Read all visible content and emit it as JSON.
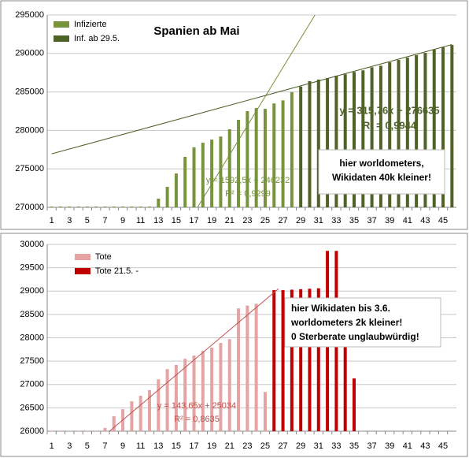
{
  "chart_data": [
    {
      "type": "bar",
      "title": "Spanien ab Mai",
      "categories": [
        1,
        null,
        3,
        null,
        5,
        null,
        7,
        null,
        9,
        null,
        11,
        null,
        13,
        null,
        15,
        null,
        17,
        null,
        19,
        null,
        21,
        null,
        23,
        null,
        25,
        null,
        27,
        null,
        29,
        null,
        31,
        null,
        33,
        null,
        35,
        null,
        37,
        null,
        39,
        null,
        41,
        null,
        43,
        null,
        45,
        null
      ],
      "series": [
        {
          "name": "Infizierte",
          "color": "#77933c",
          "values": [
            270100,
            270100,
            270100,
            270100,
            270100,
            270100,
            270100,
            270100,
            270100,
            270100,
            270100,
            270100,
            271130,
            272660,
            274400,
            276560,
            277790,
            278400,
            278800,
            279200,
            280140,
            281370,
            282500,
            282900,
            282800,
            283500,
            283900,
            284960,
            null,
            null,
            null,
            null,
            null,
            null,
            null,
            null,
            null,
            null,
            null,
            null,
            null,
            null,
            null,
            null,
            null,
            null
          ]
        },
        {
          "name": "Inf. ab 29.5.",
          "color": "#4f6228",
          "values": [
            null,
            null,
            null,
            null,
            null,
            null,
            null,
            null,
            null,
            null,
            null,
            null,
            null,
            null,
            null,
            null,
            null,
            null,
            null,
            null,
            null,
            null,
            null,
            null,
            null,
            null,
            null,
            null,
            285700,
            286400,
            286600,
            286800,
            287100,
            287300,
            287600,
            287800,
            288200,
            288400,
            288850,
            289150,
            289450,
            289770,
            290070,
            290500,
            290800,
            291100
          ]
        }
      ],
      "ylim": [
        270000,
        295000
      ],
      "yticks": [
        270000,
        275000,
        280000,
        285000,
        290000,
        295000
      ],
      "grid": true,
      "legend": "top-left",
      "trendlines": [
        {
          "color": "#77933c",
          "x": [
            17.4,
            30.6
          ],
          "values": [
            270000,
            295000
          ],
          "equation": "y = 1592,5x + 246232",
          "r_squared": "R² = 0,9299"
        },
        {
          "color": "#4f6228",
          "x": [
            1,
            46
          ],
          "values": [
            276950,
            291160
          ],
          "equation": "y = 315,76x + 276635",
          "r_squared": "R² = 0,9944"
        }
      ],
      "annotations": [
        "hier worldometers,",
        "Wikidaten 40k kleiner!"
      ]
    },
    {
      "type": "bar",
      "categories": [
        1,
        null,
        3,
        null,
        5,
        null,
        7,
        null,
        9,
        null,
        11,
        null,
        13,
        null,
        15,
        null,
        17,
        null,
        19,
        null,
        21,
        null,
        23,
        null,
        25,
        null,
        27,
        null,
        29,
        null,
        31,
        null,
        33,
        null,
        35,
        null,
        37,
        null,
        39,
        null,
        41,
        null,
        43,
        null,
        45,
        null
      ],
      "series": [
        {
          "name": "Tote",
          "color": "#e6a3a3",
          "values": [
            26010,
            26010,
            26010,
            26010,
            26010,
            26010,
            26070,
            26320,
            26470,
            26640,
            26760,
            26880,
            27110,
            27330,
            27420,
            27550,
            27620,
            27720,
            27790,
            27890,
            27970,
            28630,
            28690,
            28730,
            26840,
            null,
            null,
            null,
            null,
            null,
            null,
            null,
            null,
            null,
            null,
            null,
            null,
            null,
            null,
            null,
            null,
            null,
            null,
            null,
            null,
            null
          ]
        },
        {
          "name": "Tote 21.5. -",
          "color": "#c00000",
          "values": [
            null,
            null,
            null,
            null,
            null,
            null,
            null,
            null,
            null,
            null,
            null,
            null,
            null,
            null,
            null,
            null,
            null,
            null,
            null,
            null,
            null,
            null,
            null,
            null,
            null,
            29020,
            29020,
            29030,
            29040,
            29050,
            29060,
            29860,
            29860,
            28700,
            27130,
            null,
            null,
            null,
            null,
            null,
            null,
            null,
            null,
            null,
            null,
            null
          ]
        }
      ],
      "ylim": [
        26000,
        30000
      ],
      "yticks": [
        26000,
        26500,
        27000,
        27500,
        28000,
        28500,
        29000,
        29500,
        30000
      ],
      "grid": true,
      "legend": "top-left",
      "trendlines": [
        {
          "color": "#c0504d",
          "x": [
            7.5,
            26.5
          ],
          "values": [
            26000,
            29050
          ],
          "equation": "y = 143,65x + 25034",
          "r_squared": "R² = 0,8635"
        }
      ],
      "annotations": [
        "hier Wikidaten bis 3.6.",
        "worldometers 2k kleiner!",
        "0 Sterberate unglaubwürdig!"
      ]
    }
  ]
}
